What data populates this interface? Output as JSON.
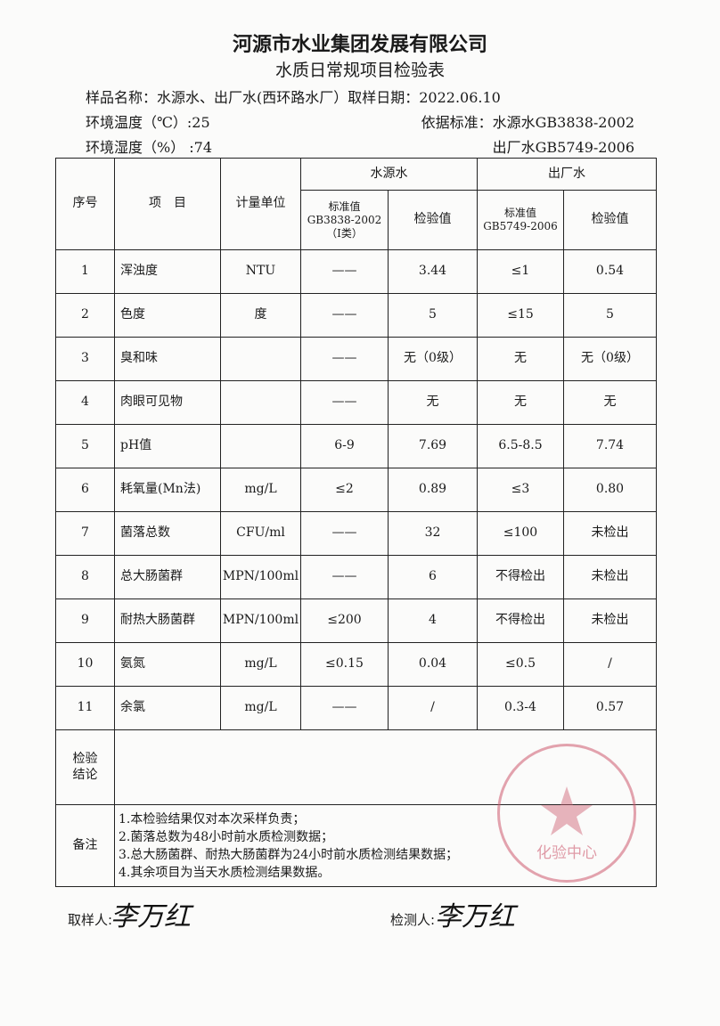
{
  "header": {
    "company": "河源市水业集团发展有限公司",
    "form_title": "水质日常规项目检验表",
    "sample_name": "样品名称：水源水、出厂水(西环路水厂）取样日期：2022.06.10",
    "temperature": "环境温度（℃）:25",
    "humidity": "环境湿度（%） :74",
    "standard_line1": "依据标准：水源水GB3838-2002",
    "standard_line2": "出厂水GB5749-2006"
  },
  "table": {
    "col_seq": "序号",
    "col_item": "项　目",
    "col_unit": "计量单位",
    "group_source": "水源水",
    "group_output": "出厂水",
    "source_std_label": "标准值",
    "source_std_code": "GB3838-2002",
    "source_std_class": "（Ⅰ类）",
    "source_val_label": "检验值",
    "output_std_label": "标准值",
    "output_std_code": "GB5749-2006",
    "output_val_label": "检验值",
    "rows": [
      {
        "seq": "1",
        "item": "浑浊度",
        "unit": "NTU",
        "src_std": "——",
        "src_val": "3.44",
        "out_std": "≤1",
        "out_val": "0.54"
      },
      {
        "seq": "2",
        "item": "色度",
        "unit": "度",
        "src_std": "——",
        "src_val": "5",
        "out_std": "≤15",
        "out_val": "5"
      },
      {
        "seq": "3",
        "item": "臭和味",
        "unit": "",
        "src_std": "——",
        "src_val": "无（0级）",
        "out_std": "无",
        "out_val": "无（0级）"
      },
      {
        "seq": "4",
        "item": "肉眼可见物",
        "unit": "",
        "src_std": "——",
        "src_val": "无",
        "out_std": "无",
        "out_val": "无"
      },
      {
        "seq": "5",
        "item": "pH值",
        "unit": "",
        "src_std": "6-9",
        "src_val": "7.69",
        "out_std": "6.5-8.5",
        "out_val": "7.74"
      },
      {
        "seq": "6",
        "item": "耗氧量(Mn法)",
        "unit": "mg/L",
        "src_std": "≤2",
        "src_val": "0.89",
        "out_std": "≤3",
        "out_val": "0.80"
      },
      {
        "seq": "7",
        "item": "菌落总数",
        "unit": "CFU/ml",
        "src_std": "——",
        "src_val": "32",
        "out_std": "≤100",
        "out_val": "未检出"
      },
      {
        "seq": "8",
        "item": "总大肠菌群",
        "unit": "MPN/100ml",
        "src_std": "——",
        "src_val": "6",
        "out_std": "不得检出",
        "out_val": "未检出"
      },
      {
        "seq": "9",
        "item": "耐热大肠菌群",
        "unit": "MPN/100ml",
        "src_std": "≤200",
        "src_val": "4",
        "out_std": "不得检出",
        "out_val": "未检出"
      },
      {
        "seq": "10",
        "item": "氨氮",
        "unit": "mg/L",
        "src_std": "≤0.15",
        "src_val": "0.04",
        "out_std": "≤0.5",
        "out_val": "/"
      },
      {
        "seq": "11",
        "item": "余氯",
        "unit": "mg/L",
        "src_std": "——",
        "src_val": "/",
        "out_std": "0.3-4",
        "out_val": "0.57"
      }
    ],
    "conclusion_label_1": "检验",
    "conclusion_label_2": "结论",
    "conclusion": "",
    "remarks_label": "备注",
    "remarks": [
      "1.本检验结果仅对本次采样负责；",
      "2.菌落总数为48小时前水质检测数据；",
      "3.总大肠菌群、耐热大肠菌群为24小时前水质检测结果数据；",
      "4.其余项目为当天水质检测结果数据。"
    ]
  },
  "seal": {
    "outer_text": "河源市水业集团发展有限公司",
    "inner_text": "化验中心",
    "color": "#cd5a6e"
  },
  "footer": {
    "sampler_label": "取样人:",
    "sampler_signature": "李万红",
    "tester_label": "检测人:",
    "tester_signature": "李万红"
  }
}
